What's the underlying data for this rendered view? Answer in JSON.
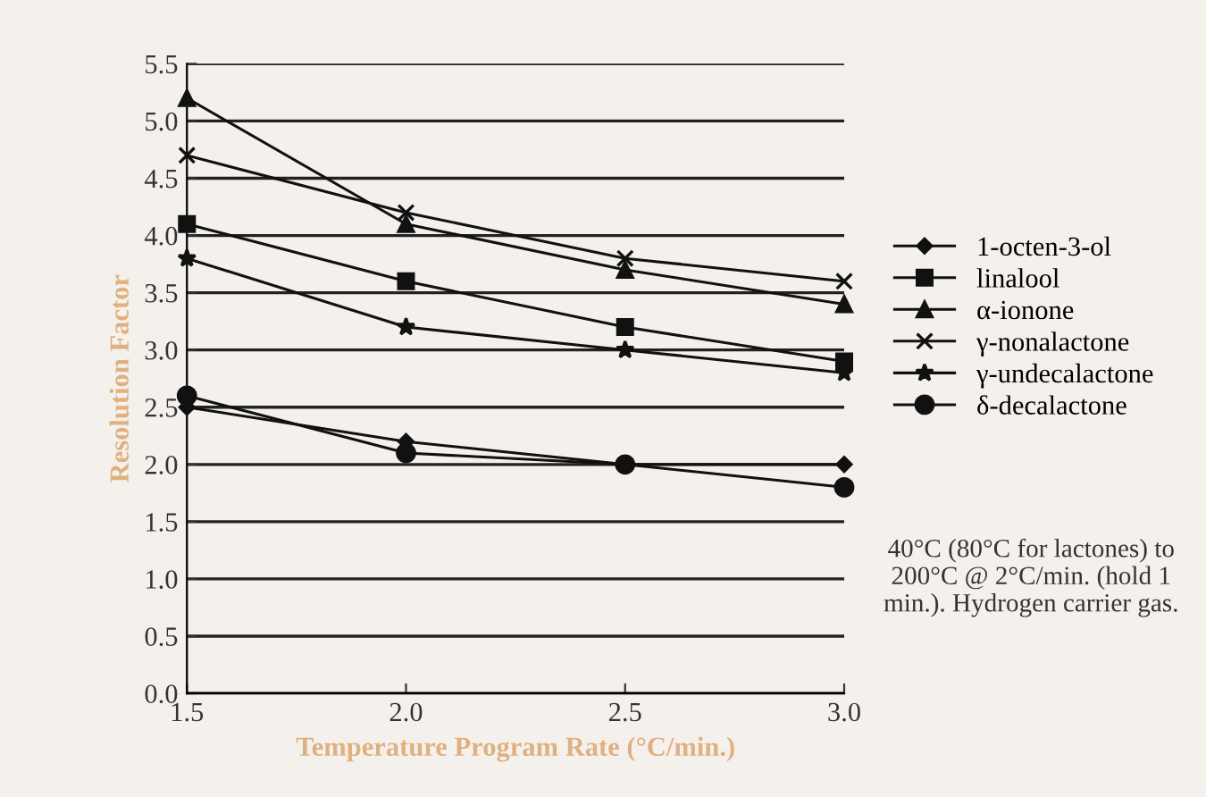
{
  "chart_data": {
    "type": "line",
    "xlabel": "Temperature Program Rate (°C/min.)",
    "ylabel": "Resolution Factor",
    "x": [
      1.5,
      2.0,
      2.5,
      3.0
    ],
    "series": [
      {
        "name": "1-octen-3-ol",
        "color": "#111111",
        "marker": "diamond",
        "values": [
          2.5,
          2.2,
          2.0,
          2.0
        ]
      },
      {
        "name": "linalool",
        "color": "#111111",
        "marker": "square",
        "values": [
          4.1,
          3.6,
          3.2,
          2.9
        ]
      },
      {
        "name": "α-ionone",
        "color": "#111111",
        "marker": "triangle",
        "values": [
          5.2,
          4.1,
          3.7,
          3.4
        ]
      },
      {
        "name": "γ-nonalactone",
        "color": "#111111",
        "marker": "cross",
        "values": [
          4.7,
          4.2,
          3.8,
          3.6
        ]
      },
      {
        "name": "γ-undecalactone",
        "color": "#111111",
        "marker": "star",
        "values": [
          3.8,
          3.2,
          3.0,
          2.8
        ]
      },
      {
        "name": "δ-decalactone",
        "color": "#111111",
        "marker": "circle",
        "values": [
          2.6,
          2.1,
          2.0,
          1.8
        ]
      }
    ],
    "xlim": [
      1.5,
      3.0
    ],
    "xticks": [
      {
        "value": 1.5,
        "label": "1.5"
      },
      {
        "value": 2.0,
        "label": "2.0"
      },
      {
        "value": 2.5,
        "label": "2.5"
      },
      {
        "value": 3.0,
        "label": "3.0"
      }
    ],
    "ylim": [
      0,
      5.5
    ],
    "yticks": [
      {
        "value": 0,
        "label": "0.0"
      },
      {
        "value": 0.5,
        "label": "0.5"
      },
      {
        "value": 1.0,
        "label": "1.0"
      },
      {
        "value": 1.5,
        "label": "1.5"
      },
      {
        "value": 2.0,
        "label": "2.0"
      },
      {
        "value": 2.5,
        "label": "2.5"
      },
      {
        "value": 3.0,
        "label": "3.0"
      },
      {
        "value": 3.5,
        "label": "3.5"
      },
      {
        "value": 4.0,
        "label": "4.0"
      },
      {
        "value": 4.5,
        "label": "4.5"
      },
      {
        "value": 5.0,
        "label": "5.0"
      },
      {
        "value": 5.5,
        "label": "5.5"
      }
    ],
    "grid": "y",
    "legend": "right",
    "line_style": "solid",
    "annotations": [
      "40°C (80°C for lactones) to 200°C @ 2°C/min. (hold 1 min.). Hydrogen carrier gas."
    ]
  }
}
